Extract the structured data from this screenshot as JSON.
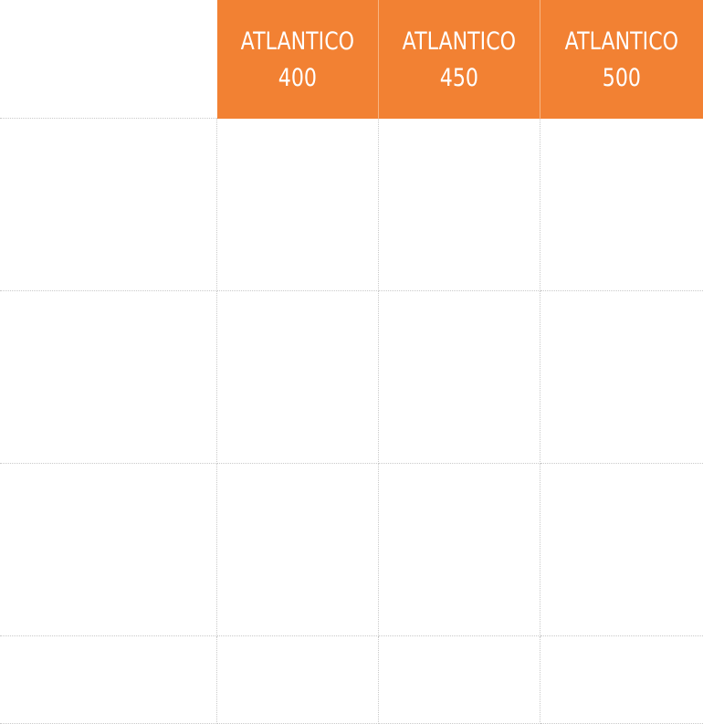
{
  "comparison_table": {
    "columns": [
      {
        "name": "ATLANTICO",
        "model": "400"
      },
      {
        "name": "ATLANTICO",
        "model": "450"
      },
      {
        "name": "ATLANTICO",
        "model": "500"
      }
    ],
    "header_color": "#f28133",
    "rows": [
      {
        "label": "",
        "cells": [
          "",
          "",
          ""
        ]
      },
      {
        "label": "",
        "cells": [
          "",
          "",
          ""
        ]
      },
      {
        "label": "",
        "cells": [
          "",
          "",
          ""
        ]
      },
      {
        "label": "",
        "cells": [
          "",
          "",
          ""
        ]
      }
    ]
  }
}
